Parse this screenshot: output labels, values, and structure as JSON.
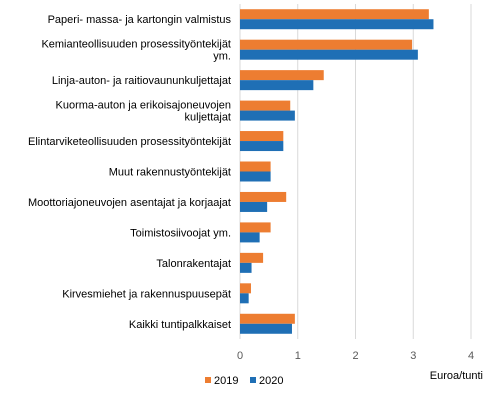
{
  "chart_data": {
    "type": "bar",
    "orientation": "horizontal",
    "categories": [
      [
        "Paperi- massa- ja kartongin valmistus"
      ],
      [
        "Kemianteollisuuden prosessityöntekijät",
        "ym."
      ],
      [
        "Linja-auton- ja raitiovaununkuljettajat"
      ],
      [
        "Kuorma-auton ja erikoisajoneuvojen",
        "kuljettajat"
      ],
      [
        "Elintarviketeollisuuden prosessityöntekijät"
      ],
      [
        "Muut rakennustyöntekijät"
      ],
      [
        "Moottoriajoneuvojen asentajat ja korjaajat"
      ],
      [
        "Toimistosiivoojat ym."
      ],
      [
        "Talonrakentajat"
      ],
      [
        "Kirvesmiehet ja rakennuspuusepät"
      ],
      [
        "Kaikki tuntipalkkaiset"
      ]
    ],
    "series": [
      {
        "name": "2019",
        "color": "#ed7d31",
        "values": [
          3.27,
          2.98,
          1.45,
          0.87,
          0.75,
          0.53,
          0.8,
          0.53,
          0.4,
          0.19,
          0.95
        ]
      },
      {
        "name": "2020",
        "color": "#1f6fb5",
        "values": [
          3.35,
          3.08,
          1.27,
          0.95,
          0.75,
          0.53,
          0.47,
          0.34,
          0.2,
          0.15,
          0.9
        ]
      }
    ],
    "xlabel": "Euroa/tunti",
    "xlim": [
      0,
      4
    ],
    "xticks": [
      "0",
      "1",
      "2",
      "3",
      "4"
    ],
    "grid": true,
    "legend_position": "bottom"
  }
}
